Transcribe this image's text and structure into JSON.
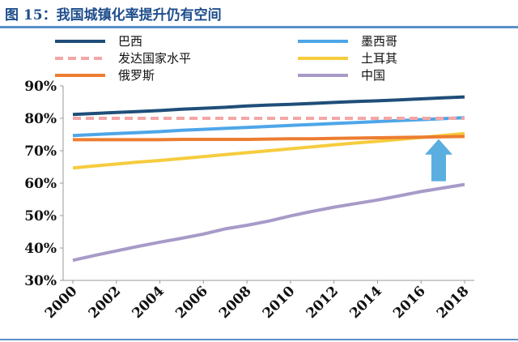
{
  "figure": {
    "title": "图 15：我国城镇化率提升仍有空间"
  },
  "colors": {
    "rule": "#5b8fc9",
    "arrow": "#5aaee0"
  },
  "chart_data": {
    "type": "line",
    "title": "",
    "xlabel": "",
    "ylabel": "",
    "x": [
      2000,
      2001,
      2002,
      2003,
      2004,
      2005,
      2006,
      2007,
      2008,
      2009,
      2010,
      2011,
      2012,
      2013,
      2014,
      2015,
      2016,
      2017,
      2018
    ],
    "x_ticks": [
      "2000",
      "2002",
      "2004",
      "2006",
      "2008",
      "2010",
      "2012",
      "2014",
      "2016",
      "2018"
    ],
    "y_ticks": [
      "90%",
      "80%",
      "70%",
      "60%",
      "50%",
      "40%",
      "30%"
    ],
    "ylim": [
      30,
      90
    ],
    "xlim": [
      2000,
      2018
    ],
    "grid": false,
    "legend_position": "top",
    "series": [
      {
        "name": "巴西",
        "color": "#1f4e79",
        "dash": false,
        "values": [
          81.2,
          81.5,
          81.8,
          82.1,
          82.4,
          82.8,
          83.1,
          83.4,
          83.8,
          84.1,
          84.3,
          84.6,
          84.9,
          85.2,
          85.4,
          85.7,
          86.0,
          86.3,
          86.6
        ]
      },
      {
        "name": "墨西哥",
        "color": "#4ea6e8",
        "dash": false,
        "values": [
          74.7,
          75.0,
          75.3,
          75.6,
          75.9,
          76.3,
          76.6,
          76.9,
          77.2,
          77.5,
          77.8,
          78.1,
          78.4,
          78.7,
          79.0,
          79.3,
          79.6,
          79.9,
          80.2
        ]
      },
      {
        "name": "发达国家水平",
        "color": "#f4a6a6",
        "dash": true,
        "values": [
          80.0,
          80.0,
          80.0,
          80.0,
          80.0,
          80.0,
          80.0,
          80.0,
          80.0,
          80.0,
          80.0,
          80.0,
          80.0,
          80.0,
          80.0,
          80.0,
          80.0,
          80.0,
          80.0
        ]
      },
      {
        "name": "土耳其",
        "color": "#f6cc3e",
        "dash": false,
        "values": [
          64.7,
          65.3,
          65.9,
          66.5,
          67.0,
          67.6,
          68.2,
          68.8,
          69.4,
          70.0,
          70.6,
          71.2,
          71.8,
          72.4,
          72.9,
          73.5,
          74.1,
          74.7,
          75.3
        ]
      },
      {
        "name": "俄罗斯",
        "color": "#ed7d31",
        "dash": false,
        "values": [
          73.4,
          73.4,
          73.4,
          73.4,
          73.4,
          73.5,
          73.5,
          73.5,
          73.5,
          73.6,
          73.7,
          73.7,
          73.8,
          73.9,
          74.0,
          74.1,
          74.2,
          74.3,
          74.4
        ]
      },
      {
        "name": "中国",
        "color": "#a89ac8",
        "dash": false,
        "values": [
          36.2,
          37.7,
          39.1,
          40.5,
          41.8,
          43.0,
          44.3,
          45.9,
          47.0,
          48.3,
          49.9,
          51.3,
          52.6,
          53.7,
          54.8,
          56.1,
          57.4,
          58.5,
          59.6
        ]
      }
    ]
  }
}
